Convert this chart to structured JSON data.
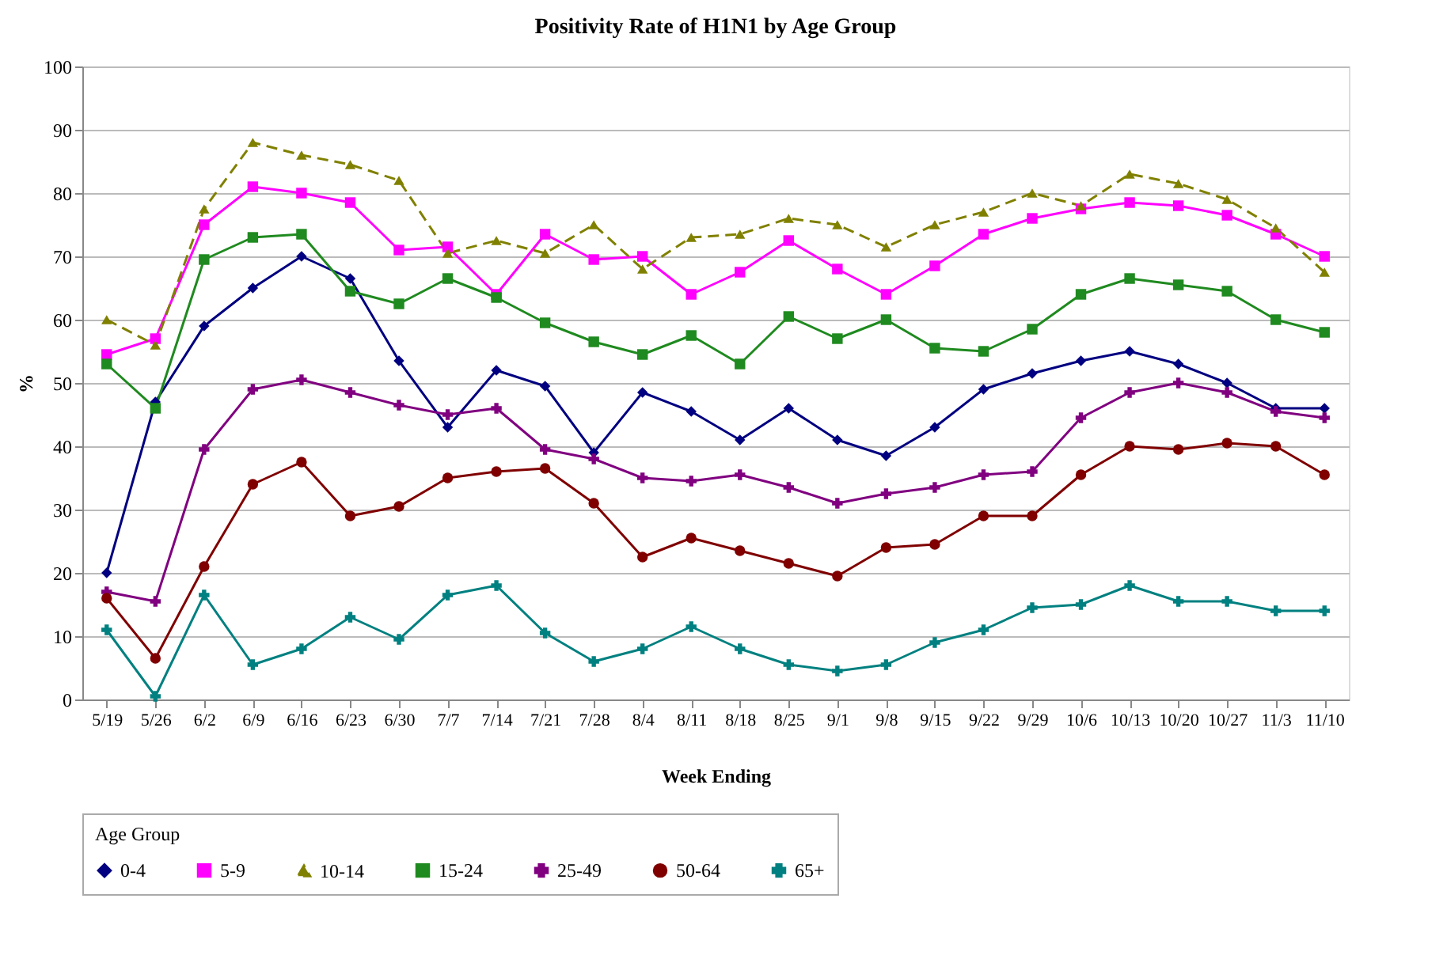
{
  "chart_data": {
    "type": "line",
    "title": "Positivity Rate of H1N1 by Age Group",
    "xlabel": "Week Ending",
    "ylabel": "%",
    "legend_title": "Age Group",
    "categories": [
      "5/19",
      "5/26",
      "6/2",
      "6/9",
      "6/16",
      "6/23",
      "6/30",
      "7/7",
      "7/14",
      "7/21",
      "7/28",
      "8/4",
      "8/11",
      "8/18",
      "8/25",
      "9/1",
      "9/8",
      "9/15",
      "9/22",
      "9/29",
      "10/6",
      "10/13",
      "10/20",
      "10/27",
      "11/3",
      "11/10"
    ],
    "series": [
      {
        "name": "0-4",
        "color": "#000080",
        "marker": "diamond",
        "line_style": "solid",
        "values": [
          20,
          47,
          59,
          65,
          70,
          66.5,
          53.5,
          43,
          52,
          49.5,
          39,
          48.5,
          45.5,
          41,
          46,
          41,
          38.5,
          43,
          49,
          51.5,
          53.5,
          55,
          53,
          50,
          46,
          46
        ]
      },
      {
        "name": "5-9",
        "color": "#ff00ff",
        "marker": "square",
        "line_style": "solid",
        "values": [
          54.5,
          57,
          75,
          81,
          80,
          78.5,
          71,
          71.5,
          64,
          73.5,
          69.5,
          70,
          64,
          67.5,
          72.5,
          68,
          64,
          68.5,
          73.5,
          76,
          77.5,
          78.5,
          78,
          76.5,
          73.5,
          70
        ]
      },
      {
        "name": "10-14",
        "color": "#808000",
        "marker": "triangle",
        "line_style": "dashed",
        "values": [
          60,
          56,
          77.5,
          88,
          86,
          84.5,
          82,
          70.5,
          72.5,
          70.5,
          75,
          68,
          73,
          73.5,
          76,
          75,
          71.5,
          75,
          77,
          80,
          78,
          83,
          81.5,
          79,
          74.5,
          67.5
        ]
      },
      {
        "name": "15-24",
        "color": "#1f8a1f",
        "marker": "square",
        "line_style": "solid",
        "values": [
          53,
          46,
          69.5,
          73,
          73.5,
          64.5,
          62.5,
          66.5,
          63.5,
          59.5,
          56.5,
          54.5,
          57.5,
          53,
          60.5,
          57,
          60,
          55.5,
          55,
          58.5,
          64,
          66.5,
          65.5,
          64.5,
          60,
          58
        ]
      },
      {
        "name": "25-49",
        "color": "#800080",
        "marker": "cross",
        "line_style": "solid",
        "values": [
          17,
          15.5,
          39.5,
          49,
          50.5,
          48.5,
          46.5,
          45,
          46,
          39.5,
          38,
          35,
          34.5,
          35.5,
          33.5,
          31,
          32.5,
          33.5,
          35.5,
          36,
          44.5,
          48.5,
          50,
          48.5,
          45.5,
          44.5
        ]
      },
      {
        "name": "50-64",
        "color": "#800000",
        "marker": "circle",
        "line_style": "solid",
        "values": [
          16,
          6.5,
          21,
          34,
          37.5,
          29,
          30.5,
          35,
          36,
          36.5,
          31,
          22.5,
          25.5,
          23.5,
          21.5,
          19.5,
          24,
          24.5,
          29,
          29,
          35.5,
          40,
          39.5,
          40.5,
          40,
          35.5
        ]
      },
      {
        "name": "65+",
        "color": "#008080",
        "marker": "cross",
        "line_style": "solid",
        "values": [
          11,
          0.5,
          16.5,
          5.5,
          8,
          13,
          9.5,
          16.5,
          18,
          10.5,
          6,
          8,
          11.5,
          8,
          5.5,
          4.5,
          5.5,
          9,
          11,
          14.5,
          15,
          18,
          15.5,
          15.5,
          14,
          14
        ]
      }
    ],
    "ylim": [
      0,
      100
    ],
    "yticks": [
      0,
      10,
      20,
      30,
      40,
      50,
      60,
      70,
      80,
      90,
      100
    ],
    "grid": "y",
    "legend": "bottom"
  }
}
